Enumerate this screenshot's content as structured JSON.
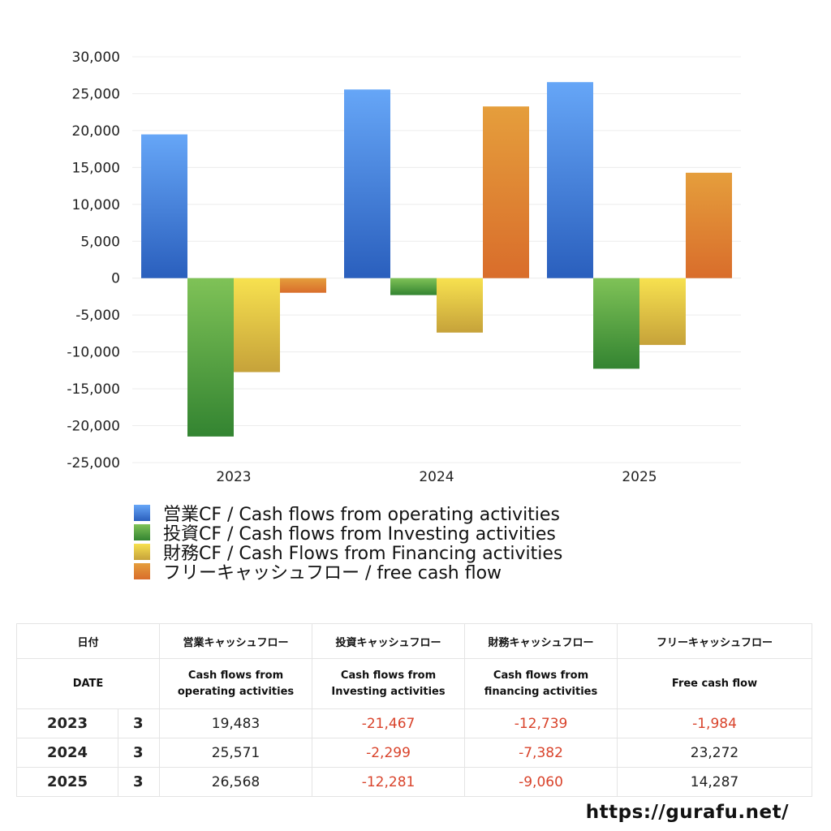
{
  "chart_data": {
    "type": "bar",
    "categories": [
      "2023",
      "2024",
      "2025"
    ],
    "series": [
      {
        "name": "営業CF / Cash flows from operating activities",
        "values": [
          19483,
          25571,
          26568
        ],
        "color_top": "#66a6f7",
        "color_bottom": "#2a5fbd"
      },
      {
        "name": "投資CF / Cash flows from Investing activities",
        "values": [
          -21467,
          -2299,
          -12281
        ],
        "color_top": "#7fc257",
        "color_bottom": "#338431"
      },
      {
        "name": "財務CF / Cash Flows from Financing activities",
        "values": [
          -12739,
          -7382,
          -9060
        ],
        "color_top": "#f7e14f",
        "color_bottom": "#c6a23a"
      },
      {
        "name": "フリーキャッシュフロー / free cash flow",
        "values": [
          -1984,
          23272,
          14287
        ],
        "color_top": "#e59e3c",
        "color_bottom": "#d96d2b"
      }
    ],
    "ylim": [
      -25000,
      30000
    ],
    "yticks": [
      30000,
      25000,
      20000,
      15000,
      10000,
      5000,
      0,
      -5000,
      -10000,
      -15000,
      -20000,
      -25000
    ],
    "ytick_labels": [
      "30,000",
      "25,000",
      "20,000",
      "15,000",
      "10,000",
      "5,000",
      "0",
      "-5,000",
      "-10,000",
      "-15,000",
      "-20,000",
      "-25,000"
    ],
    "grid": true,
    "legend_position": "bottom"
  },
  "table": {
    "headers_jp": [
      "日付",
      "",
      "営業キャッシュフロー",
      "投資キャッシュフロー",
      "財務キャッシュフロー",
      "フリーキャッシュフロー"
    ],
    "headers_en_line1": [
      "DATE",
      "",
      "Cash flows from",
      "Cash flows from",
      "Cash flows from",
      "Free cash flow"
    ],
    "headers_en_line2": [
      "",
      "",
      "operating activities",
      "Investing activities",
      "financing activities",
      ""
    ],
    "rows": [
      {
        "year": "2023",
        "month": "3",
        "values": [
          "19,483",
          "-21,467",
          "-12,739",
          "-1,984"
        ],
        "negative": [
          false,
          true,
          true,
          true
        ]
      },
      {
        "year": "2024",
        "month": "3",
        "values": [
          "25,571",
          "-2,299",
          "-7,382",
          "23,272"
        ],
        "negative": [
          false,
          true,
          true,
          false
        ]
      },
      {
        "year": "2025",
        "month": "3",
        "values": [
          "26,568",
          "-12,281",
          "-9,060",
          "14,287"
        ],
        "negative": [
          false,
          true,
          true,
          false
        ]
      }
    ]
  },
  "footer": {
    "url": "https://gurafu.net/"
  }
}
